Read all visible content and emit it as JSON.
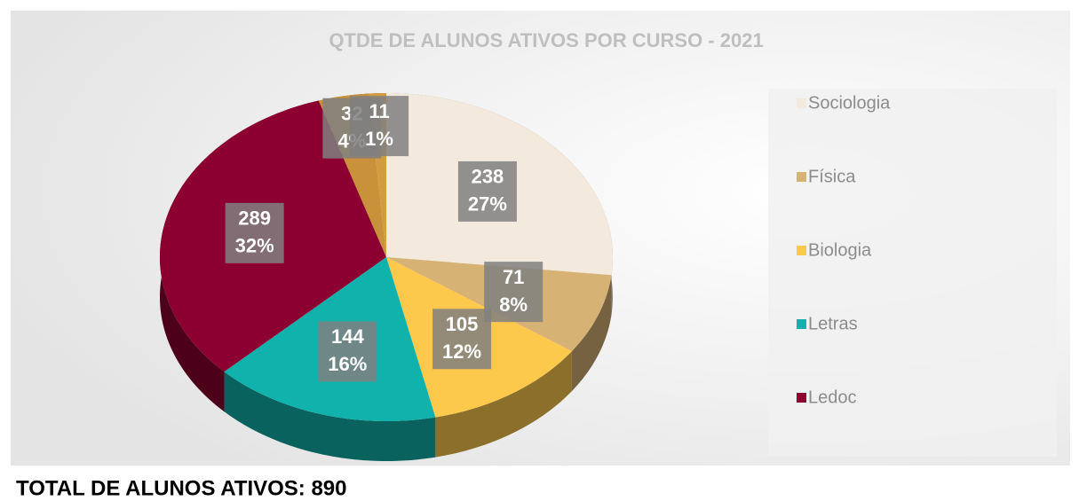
{
  "chart_data": {
    "type": "pie",
    "title": "QTDE DE ALUNOS ATIVOS POR CURSO - 2021",
    "categories": [
      "Sociologia",
      "Física",
      "Biologia",
      "Letras",
      "Ledoc",
      null,
      null
    ],
    "values": [
      238,
      71,
      105,
      144,
      289,
      32,
      11
    ],
    "percent_labels": [
      "27%",
      "8%",
      "12%",
      "16%",
      "32%",
      "4%",
      "1%"
    ],
    "colors": [
      "#f3e9dc",
      "#d6b274",
      "#fdc94d",
      "#10b2ab",
      "#8b0030",
      "#c8913a",
      "#d49c40"
    ],
    "legend": "right"
  },
  "footer": "TOTAL DE ALUNOS ATIVOS: 890"
}
